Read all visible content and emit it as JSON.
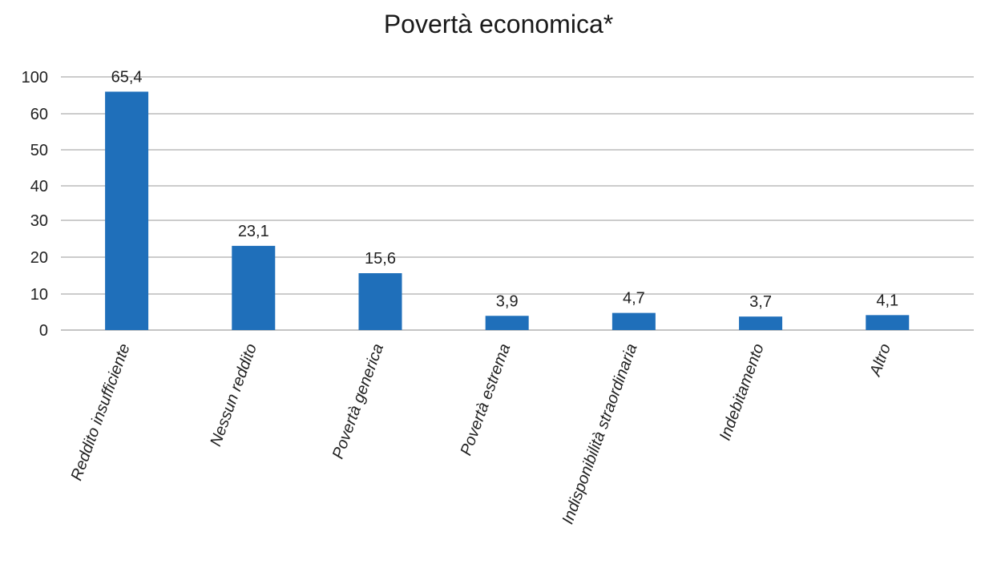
{
  "chart_data": {
    "type": "bar",
    "title": "Povertà economica*",
    "categories": [
      "Reddito insufficiente",
      "Nessun reddito",
      "Povertà generica",
      "Povertà estrema",
      "Indisponibilità straordinaria",
      "Indebitamento",
      "Altro"
    ],
    "values": [
      65.4,
      23.1,
      15.6,
      3.9,
      4.7,
      3.7,
      4.1
    ],
    "value_labels": [
      "65,4",
      "23,1",
      "15,6",
      "3,9",
      "4,7",
      "3,7",
      "4,1"
    ],
    "yticks": [
      "0",
      "10",
      "20",
      "30",
      "40",
      "50",
      "60",
      "100"
    ],
    "bar_color": "#1f6fba",
    "grid": true,
    "legend": "none"
  }
}
